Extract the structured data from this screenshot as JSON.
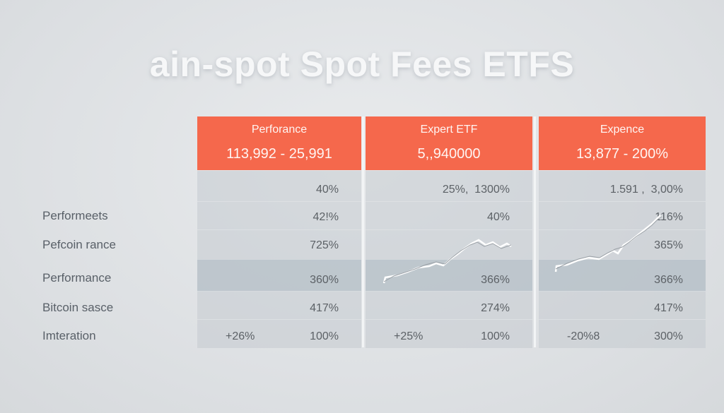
{
  "title": "ain-spot Spot Fees ETFS",
  "row_labels": [
    "Performeets",
    "Pefcoin rance",
    "Performance",
    "Bitcoin sasce",
    "Imteration"
  ],
  "table": {
    "columns": [
      {
        "header": "Perforance",
        "value": "113,992 - 25,991",
        "cells": [
          "40%",
          "42!%",
          "725%",
          "360%",
          "417%",
          "100%"
        ],
        "extra": "+26%"
      },
      {
        "header": "Expert ETF",
        "value": "5,,940000",
        "cells": [
          "25%,  1300%",
          "40%",
          "366%",
          "274%",
          "100%"
        ],
        "extra": "+25%"
      },
      {
        "header": "Expence",
        "value": "13,877 - 200%",
        "cells": [
          "1.591 ,  3,00%",
          "116%",
          "365%",
          "366%",
          "417%",
          "300%"
        ],
        "extra": "-20%8"
      }
    ]
  }
}
